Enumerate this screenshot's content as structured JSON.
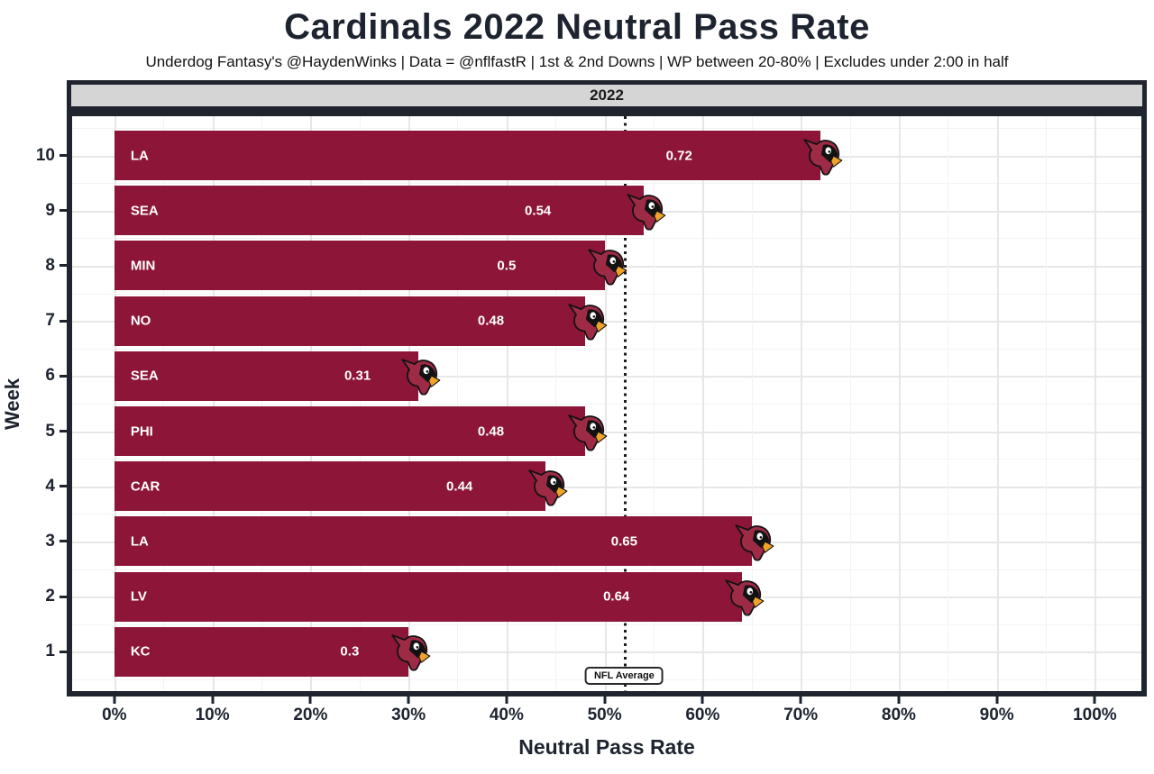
{
  "header": {
    "title": "Cardinals 2022 Neutral Pass Rate",
    "subtitle": "Underdog Fantasy's @HaydenWinks | Data = @nflfastR | 1st & 2nd Downs | WP between 20-80% | Excludes under 2:00 in half"
  },
  "chart_data": {
    "type": "bar",
    "orientation": "horizontal",
    "title": "Cardinals 2022 Neutral Pass Rate",
    "facet_label": "2022",
    "xlabel": "Neutral Pass Rate",
    "ylabel": "Week",
    "xlim": [
      0,
      1.0
    ],
    "grid": true,
    "categories": [
      10,
      9,
      8,
      7,
      6,
      5,
      4,
      3,
      2,
      1
    ],
    "series": [
      {
        "week": "10",
        "opponent": "LA",
        "value": 0.72,
        "label": "0.72"
      },
      {
        "week": "9",
        "opponent": "SEA",
        "value": 0.54,
        "label": "0.54"
      },
      {
        "week": "8",
        "opponent": "MIN",
        "value": 0.5,
        "label": "0.5"
      },
      {
        "week": "7",
        "opponent": "NO",
        "value": 0.48,
        "label": "0.48"
      },
      {
        "week": "6",
        "opponent": "SEA",
        "value": 0.31,
        "label": "0.31"
      },
      {
        "week": "5",
        "opponent": "PHI",
        "value": 0.48,
        "label": "0.48"
      },
      {
        "week": "4",
        "opponent": "CAR",
        "value": 0.44,
        "label": "0.44"
      },
      {
        "week": "3",
        "opponent": "LA",
        "value": 0.65,
        "label": "0.65"
      },
      {
        "week": "2",
        "opponent": "LV",
        "value": 0.64,
        "label": "0.64"
      },
      {
        "week": "1",
        "opponent": "KC",
        "value": 0.3,
        "label": "0.3"
      }
    ],
    "x_ticks": [
      {
        "value": 0.0,
        "label": "0%"
      },
      {
        "value": 0.1,
        "label": "10%"
      },
      {
        "value": 0.2,
        "label": "20%"
      },
      {
        "value": 0.3,
        "label": "30%"
      },
      {
        "value": 0.4,
        "label": "40%"
      },
      {
        "value": 0.5,
        "label": "50%"
      },
      {
        "value": 0.6,
        "label": "60%"
      },
      {
        "value": 0.7,
        "label": "70%"
      },
      {
        "value": 0.8,
        "label": "80%"
      },
      {
        "value": 0.9,
        "label": "90%"
      },
      {
        "value": 1.0,
        "label": "100%"
      }
    ],
    "reference_line": {
      "value": 0.52,
      "label": "NFL Average",
      "style": "dotted"
    },
    "legend": "none",
    "colors": {
      "bar": "#8c1538",
      "bar_label": "#ffffff",
      "panel_border": "#20242e",
      "strip_background": "#d5d5d5",
      "grid_major": "#e7e7e7",
      "grid_minor": "#f3f3f3",
      "text": "#1d2430",
      "logo_red": "#9e2b45",
      "logo_beak": "#f0a32a"
    }
  }
}
